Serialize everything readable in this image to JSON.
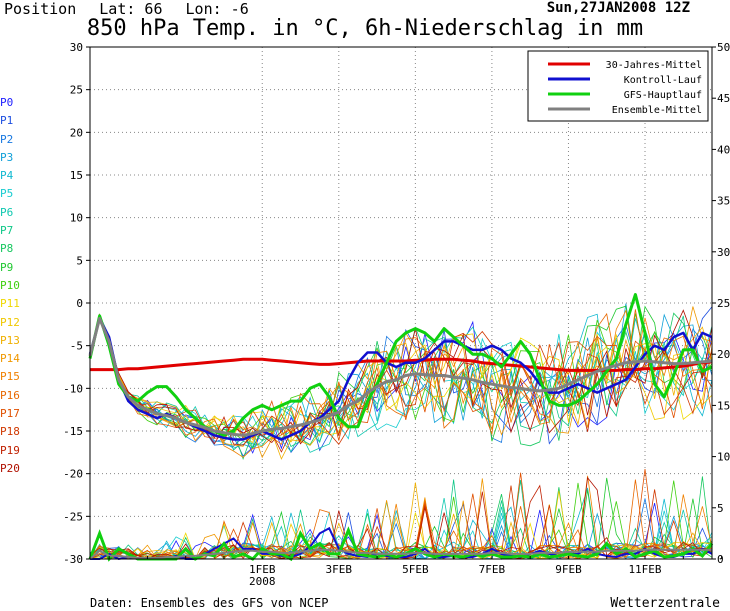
{
  "header": {
    "position": "Position",
    "lat": "Lat: 66",
    "lon": "Lon: -6",
    "datestamp": "Sun,27JAN2008 12Z",
    "title": "850 hPa Temp. in °C, 6h-Niederschlag in mm"
  },
  "footer": {
    "source": "Daten: Ensembles des GFS von NCEP",
    "brand": "Wetterzentrale"
  },
  "members": [
    {
      "name": "P0",
      "color": "#2020ff"
    },
    {
      "name": "P1",
      "color": "#1c4ee0"
    },
    {
      "name": "P2",
      "color": "#1878e0"
    },
    {
      "name": "P3",
      "color": "#10a0d8"
    },
    {
      "name": "P4",
      "color": "#10b8d0"
    },
    {
      "name": "P5",
      "color": "#18ccd0"
    },
    {
      "name": "P6",
      "color": "#10c8b0"
    },
    {
      "name": "P7",
      "color": "#10c888"
    },
    {
      "name": "P8",
      "color": "#18c860"
    },
    {
      "name": "P9",
      "color": "#20c830"
    },
    {
      "name": "P10",
      "color": "#40d010"
    },
    {
      "name": "P11",
      "color": "#f0d800"
    },
    {
      "name": "P12",
      "color": "#f0c800"
    },
    {
      "name": "P13",
      "color": "#f0b000"
    },
    {
      "name": "P14",
      "color": "#f09800"
    },
    {
      "name": "P15",
      "color": "#f08000"
    },
    {
      "name": "P16",
      "color": "#e86800"
    },
    {
      "name": "P17",
      "color": "#e05000"
    },
    {
      "name": "P18",
      "color": "#d03800"
    },
    {
      "name": "P19",
      "color": "#c02000"
    },
    {
      "name": "P20",
      "color": "#b01000"
    }
  ],
  "chart_data": {
    "type": "line",
    "title": "850 hPa Temp. in °C, 6h-Niederschlag in mm",
    "ylabel_left": "°C",
    "ylabel_right": "mm",
    "ylim_left": [
      -30,
      30
    ],
    "ylim_right": [
      0,
      50
    ],
    "yticks_left": [
      -30,
      -25,
      -20,
      -15,
      -10,
      -5,
      0,
      5,
      10,
      15,
      20,
      25,
      30
    ],
    "yticks_right": [
      0,
      5,
      10,
      15,
      20,
      25,
      30,
      35,
      40,
      45,
      50
    ],
    "xlim": [
      0,
      16.25
    ],
    "xticks": [
      {
        "t": 4.5,
        "label": "1FEB",
        "sublabel": "2008"
      },
      {
        "t": 6.5,
        "label": "3FEB",
        "sublabel": ""
      },
      {
        "t": 8.5,
        "label": "5FEB",
        "sublabel": ""
      },
      {
        "t": 10.5,
        "label": "7FEB",
        "sublabel": ""
      },
      {
        "t": 12.5,
        "label": "9FEB",
        "sublabel": ""
      },
      {
        "t": 14.5,
        "label": "11FEB",
        "sublabel": ""
      }
    ],
    "x_step_days": 0.25,
    "legend": [
      "30-Jahres-Mittel",
      "Kontroll-Lauf",
      "GFS-Hauptlauf",
      "Ensemble-Mittel"
    ],
    "legend_colors": [
      "#e00000",
      "#1010d0",
      "#10d010",
      "#808080"
    ],
    "legend_position": "top-right",
    "grid": true,
    "series": [
      {
        "name": "30-Jahres-Mittel",
        "color": "#e00000",
        "width": 3,
        "values": [
          -7.8,
          -7.8,
          -7.8,
          -7.8,
          -7.7,
          -7.7,
          -7.6,
          -7.5,
          -7.4,
          -7.3,
          -7.2,
          -7.1,
          -7.0,
          -6.9,
          -6.8,
          -6.7,
          -6.6,
          -6.6,
          -6.6,
          -6.7,
          -6.8,
          -6.9,
          -7.0,
          -7.1,
          -7.2,
          -7.2,
          -7.1,
          -7.0,
          -6.9,
          -6.8,
          -6.8,
          -6.8,
          -6.8,
          -6.8,
          -6.7,
          -6.7,
          -6.6,
          -6.6,
          -6.6,
          -6.7,
          -6.8,
          -7.0,
          -7.1,
          -7.2,
          -7.3,
          -7.4,
          -7.5,
          -7.6,
          -7.7,
          -7.8,
          -7.9,
          -7.9,
          -7.9,
          -7.9,
          -7.9,
          -7.9,
          -7.8,
          -7.8,
          -7.7,
          -7.7,
          -7.6,
          -7.5,
          -7.4,
          -7.2,
          -7.0,
          -6.9
        ]
      },
      {
        "name": "Kontroll-Lauf",
        "color": "#1010d0",
        "width": 2.5,
        "values": [
          -6.0,
          -1.8,
          -4.0,
          -9.0,
          -11.5,
          -12.5,
          -13.0,
          -13.5,
          -13.0,
          -13.5,
          -14.0,
          -14.5,
          -15.0,
          -15.5,
          -15.8,
          -16.0,
          -16.0,
          -15.5,
          -15.0,
          -15.5,
          -16.0,
          -15.5,
          -15.0,
          -14.0,
          -13.5,
          -12.5,
          -11.5,
          -9.0,
          -7.0,
          -5.8,
          -5.8,
          -7.0,
          -7.5,
          -7.0,
          -7.0,
          -6.5,
          -5.5,
          -4.5,
          -4.5,
          -5.0,
          -5.5,
          -5.5,
          -5.0,
          -5.5,
          -6.5,
          -7.0,
          -8.0,
          -9.5,
          -10.5,
          -10.5,
          -10.0,
          -9.5,
          -10.0,
          -10.5,
          -10.0,
          -9.5,
          -9.0,
          -7.5,
          -6.0,
          -5.0,
          -5.5,
          -4.0,
          -3.5,
          -5.5,
          -3.5,
          -4.0
        ]
      },
      {
        "name": "GFS-Hauptlauf",
        "color": "#10d010",
        "width": 3,
        "values": [
          -6.5,
          -1.5,
          -5.0,
          -9.5,
          -11.0,
          -11.5,
          -10.5,
          -9.8,
          -9.8,
          -11.0,
          -12.5,
          -13.5,
          -14.5,
          -15.0,
          -15.5,
          -15.0,
          -13.5,
          -12.5,
          -12.0,
          -12.5,
          -12.0,
          -11.5,
          -11.5,
          -10.0,
          -9.5,
          -11.0,
          -13.5,
          -14.5,
          -14.5,
          -11.5,
          -9.5,
          -7.0,
          -4.5,
          -3.5,
          -3.0,
          -3.5,
          -4.5,
          -3.0,
          -4.0,
          -5.0,
          -6.0,
          -6.0,
          -6.5,
          -7.5,
          -6.0,
          -4.5,
          -6.0,
          -9.0,
          -11.5,
          -12.0,
          -12.0,
          -11.5,
          -10.5,
          -9.5,
          -8.0,
          -6.5,
          -2.5,
          1.0,
          -3.5,
          -9.5,
          -11.0,
          -8.5,
          -5.5,
          -5.5,
          -8.0,
          -7.5
        ]
      },
      {
        "name": "Ensemble-Mittel",
        "color": "#808080",
        "width": 3,
        "values": [
          -6.2,
          -1.8,
          -4.5,
          -9.0,
          -11.0,
          -12.0,
          -12.5,
          -13.0,
          -13.2,
          -13.5,
          -14.0,
          -14.3,
          -14.6,
          -15.0,
          -15.2,
          -15.4,
          -15.5,
          -15.3,
          -15.0,
          -14.8,
          -14.7,
          -14.5,
          -14.3,
          -14.0,
          -13.7,
          -13.2,
          -12.8,
          -12.0,
          -11.5,
          -10.5,
          -9.8,
          -9.2,
          -9.0,
          -8.5,
          -8.3,
          -8.4,
          -8.5,
          -8.5,
          -8.7,
          -8.8,
          -9.0,
          -9.3,
          -9.5,
          -9.7,
          -9.9,
          -10.0,
          -10.2,
          -10.3,
          -10.2,
          -10.0,
          -9.5,
          -9.0,
          -8.5,
          -8.0,
          -7.6,
          -7.3,
          -7.0,
          -6.9,
          -6.8,
          -6.9,
          -7.0,
          -7.1,
          -7.1,
          -7.0,
          -6.9,
          -6.8
        ]
      }
    ],
    "precip_series": [
      {
        "name": "Kontroll-Lauf",
        "axis": "right",
        "color": "#1010d0",
        "width": 2,
        "values": [
          0,
          0,
          0.5,
          0,
          0.2,
          0,
          0,
          0,
          0,
          0.3,
          0,
          0,
          0.5,
          1.0,
          1.5,
          2.0,
          1.0,
          1.0,
          0.5,
          0.5,
          0.3,
          0.2,
          0.5,
          1.2,
          2.5,
          3.0,
          1.0,
          0.5,
          0.3,
          0.2,
          0.5,
          0.3,
          0.2,
          0.2,
          0.5,
          1.0,
          0.2,
          0.2,
          0.3,
          0.2,
          0.2,
          0.5,
          1.0,
          0.5,
          0.3,
          0.2,
          0.5,
          0.8,
          0.5,
          0.3,
          0.5,
          0.5,
          1.0,
          0.5,
          0.3,
          0.2,
          0.5,
          0.5,
          1.0,
          0.5,
          0.2,
          0.2,
          0.5,
          0.5,
          1.0,
          0.5
        ]
      },
      {
        "name": "GFS-Hauptlauf",
        "axis": "right",
        "color": "#10d010",
        "width": 3,
        "values": [
          0,
          2.5,
          0,
          1.0,
          0.5,
          0,
          0,
          0,
          0,
          0,
          1.0,
          0,
          0.5,
          0.3,
          1.5,
          0.2,
          0.5,
          0,
          1.0,
          0.5,
          0.5,
          0,
          2.5,
          1.0,
          1.5,
          0.5,
          0.5,
          2.8,
          0.5,
          0.3,
          0.2,
          0.5,
          0.2,
          0.5,
          1.0,
          0.5,
          0.2,
          0.5,
          0.3,
          0.2,
          0.5,
          0.3,
          0.5,
          0.2,
          0.2,
          0.3,
          0.2,
          0.5,
          0.2,
          0.3,
          0.5,
          0.3,
          0.2,
          0.5,
          1.5,
          0.5,
          1.0,
          0.2,
          0.5,
          0.8,
          0.2,
          0.3,
          0.5,
          1.0,
          0.3,
          1.5
        ]
      },
      {
        "name": "Ensemble-Mittel",
        "axis": "right",
        "color": "#808080",
        "width": 2,
        "values": [
          0,
          0.8,
          0.3,
          0.3,
          0.2,
          0.1,
          0.1,
          0.1,
          0.2,
          0.2,
          0.3,
          0.3,
          0.4,
          0.5,
          0.6,
          0.7,
          0.8,
          0.8,
          0.7,
          0.7,
          0.6,
          0.6,
          0.7,
          0.8,
          0.9,
          0.9,
          0.8,
          0.7,
          0.6,
          0.6,
          0.5,
          0.5,
          0.5,
          0.5,
          0.6,
          0.6,
          0.5,
          0.5,
          0.5,
          0.5,
          0.5,
          0.5,
          0.6,
          0.6,
          0.5,
          0.5,
          0.5,
          0.6,
          0.6,
          0.6,
          0.7,
          0.7,
          0.7,
          0.7,
          0.8,
          0.8,
          0.8,
          0.8,
          0.9,
          0.9,
          0.9,
          0.9,
          0.9,
          0.9,
          0.9,
          0.9
        ]
      }
    ]
  }
}
